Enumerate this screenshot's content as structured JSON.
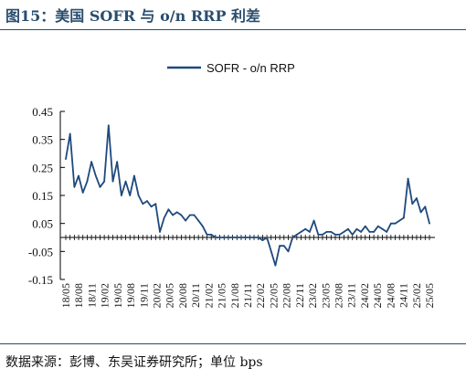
{
  "header": {
    "title": "图15：美国 SOFR 与 o/n RRP 利差"
  },
  "footer": {
    "source": "数据来源：彭博、东吴证券研究所；单位 bps"
  },
  "colors": {
    "series": "#1f497d",
    "title": "#2a4d6e",
    "axis": "#000000"
  },
  "chart_data": {
    "type": "line",
    "title": "",
    "xlabel": "",
    "ylabel": "",
    "ylim": [
      -0.15,
      0.45
    ],
    "yticks": [
      -0.15,
      -0.05,
      0.05,
      0.15,
      0.25,
      0.35,
      0.45
    ],
    "ytick_labels": [
      "-0.15",
      "-0.05",
      "0.05",
      "0.15",
      "0.25",
      "0.35",
      "0.45"
    ],
    "xticks": [
      "18/05",
      "18/08",
      "18/11",
      "19/02",
      "19/05",
      "19/08",
      "19/11",
      "20/02",
      "20/05",
      "20/08",
      "20/11",
      "21/02",
      "21/05",
      "21/08",
      "21/11",
      "22/02",
      "22/05",
      "22/08",
      "22/11",
      "23/02",
      "23/05",
      "23/08",
      "23/11",
      "24/02",
      "24/05",
      "24/08",
      "24/11",
      "25/02",
      "25/05"
    ],
    "grid": false,
    "legend": "top-center",
    "series": [
      {
        "name": "SOFR - o/n RRP",
        "x": [
          "18/05",
          "18/06",
          "18/07",
          "18/08",
          "18/09",
          "18/10",
          "18/11",
          "18/12",
          "19/01",
          "19/02",
          "19/03",
          "19/04",
          "19/05",
          "19/06",
          "19/07",
          "19/08",
          "19/09",
          "19/10",
          "19/11",
          "19/12",
          "20/01",
          "20/02",
          "20/03",
          "20/04",
          "20/05",
          "20/06",
          "20/07",
          "20/08",
          "20/09",
          "20/10",
          "20/11",
          "20/12",
          "21/01",
          "21/02",
          "21/03",
          "21/04",
          "21/05",
          "21/06",
          "21/07",
          "21/08",
          "21/09",
          "21/10",
          "21/11",
          "21/12",
          "22/01",
          "22/02",
          "22/03",
          "22/04",
          "22/05",
          "22/06",
          "22/07",
          "22/08",
          "22/09",
          "22/10",
          "22/11",
          "22/12",
          "23/01",
          "23/02",
          "23/03",
          "23/04",
          "23/05",
          "23/06",
          "23/07",
          "23/08",
          "23/09",
          "23/10",
          "23/11",
          "23/12",
          "24/01",
          "24/02",
          "24/03",
          "24/04",
          "24/05",
          "24/06",
          "24/07",
          "24/08",
          "24/09",
          "24/10",
          "24/11",
          "24/12",
          "25/01",
          "25/02",
          "25/03",
          "25/04",
          "25/05",
          "25/06"
        ],
        "values": [
          0.28,
          0.37,
          0.18,
          0.22,
          0.16,
          0.2,
          0.27,
          0.22,
          0.18,
          0.2,
          0.4,
          0.2,
          0.27,
          0.15,
          0.2,
          0.15,
          0.22,
          0.15,
          0.12,
          0.13,
          0.11,
          0.12,
          0.02,
          0.07,
          0.1,
          0.08,
          0.09,
          0.08,
          0.06,
          0.08,
          0.08,
          0.06,
          0.04,
          0.01,
          0.01,
          0.0,
          0.0,
          0.0,
          0.0,
          0.0,
          0.0,
          0.0,
          0.0,
          0.0,
          0.0,
          0.0,
          -0.01,
          0.0,
          -0.05,
          -0.1,
          -0.03,
          -0.03,
          -0.05,
          0.0,
          0.01,
          0.02,
          0.03,
          0.02,
          0.06,
          0.01,
          0.01,
          0.02,
          0.02,
          0.01,
          0.01,
          0.02,
          0.03,
          0.01,
          0.03,
          0.02,
          0.04,
          0.02,
          0.02,
          0.04,
          0.03,
          0.02,
          0.05,
          0.05,
          0.06,
          0.07,
          0.21,
          0.12,
          0.14,
          0.09,
          0.11,
          0.05
        ]
      }
    ]
  }
}
